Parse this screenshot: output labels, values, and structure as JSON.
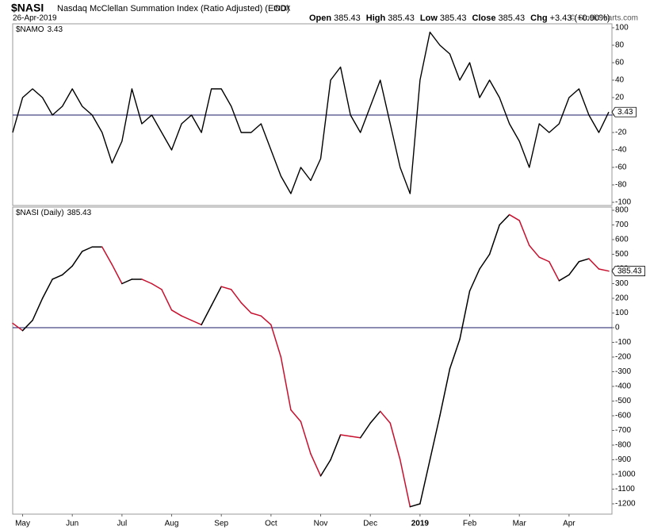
{
  "header": {
    "symbol": "$NASI",
    "name": "Nasdaq McClellan Summation Index (Ratio Adjusted) (EOD)",
    "exchange": "INDX",
    "date": "26-Apr-2019",
    "quote": [
      {
        "label": "Open",
        "value": "385.43"
      },
      {
        "label": "High",
        "value": "385.43"
      },
      {
        "label": "Low",
        "value": "385.43"
      },
      {
        "label": "Close",
        "value": "385.43"
      },
      {
        "label": "Chg",
        "value": "+3.43 (+0.90%)"
      }
    ],
    "credit": "© StockCharts.com"
  },
  "chart_data": [
    {
      "type": "line",
      "ylim": [
        -100,
        100
      ],
      "yticks": [
        100,
        80,
        60,
        40,
        20,
        0,
        -20,
        -40,
        -60,
        -80,
        -100
      ],
      "hline": {
        "value": 0,
        "color": "#1a1a66"
      },
      "series": [
        {
          "name": "$NAMO",
          "color": "#000000",
          "values": [
            -20,
            20,
            30,
            20,
            0,
            10,
            30,
            10,
            0,
            -20,
            -55,
            -30,
            30,
            -10,
            0,
            -20,
            -40,
            -10,
            0,
            -20,
            30,
            30,
            10,
            -20,
            -20,
            -10,
            -40,
            -70,
            -90,
            -60,
            -75,
            -50,
            40,
            55,
            0,
            -20,
            10,
            40,
            -10,
            -60,
            -90,
            40,
            95,
            80,
            70,
            40,
            60,
            20,
            40,
            20,
            -10,
            -30,
            -60,
            -10,
            -20,
            -10,
            20,
            30,
            0,
            -20,
            3.43
          ]
        }
      ]
    },
    {
      "type": "line",
      "ylim": [
        -1200,
        800
      ],
      "yticks": [
        800,
        700,
        600,
        500,
        400,
        300,
        200,
        100,
        0,
        -100,
        -200,
        -300,
        -400,
        -500,
        -600,
        -700,
        -800,
        -900,
        -1000,
        -1100,
        -1200
      ],
      "hline": {
        "value": 0,
        "color": "#1a1a66"
      },
      "categories": [
        null,
        "May",
        null,
        null,
        null,
        null,
        "Jun",
        null,
        null,
        null,
        null,
        "Jul",
        null,
        null,
        null,
        null,
        "Aug",
        null,
        null,
        null,
        null,
        "Sep",
        null,
        null,
        null,
        null,
        "Oct",
        null,
        null,
        null,
        null,
        "Nov",
        null,
        null,
        null,
        null,
        "Dec",
        null,
        null,
        null,
        null,
        "2019",
        null,
        null,
        null,
        null,
        "Feb",
        null,
        null,
        null,
        null,
        "Mar",
        null,
        null,
        null,
        null,
        "Apr",
        null,
        null,
        null,
        null
      ],
      "bold_categories": [
        "2019"
      ],
      "series": [
        {
          "name": "$NASI (Daily)",
          "color": "#000000",
          "down_color": "#c8102e",
          "values": [
            30,
            -20,
            50,
            200,
            330,
            360,
            420,
            520,
            550,
            550,
            430,
            300,
            330,
            330,
            300,
            260,
            120,
            80,
            50,
            20,
            150,
            280,
            260,
            170,
            100,
            80,
            20,
            -200,
            -560,
            -640,
            -860,
            -1010,
            -900,
            -730,
            -740,
            -750,
            -650,
            -570,
            -650,
            -900,
            -1220,
            -1200,
            -900,
            -600,
            -280,
            -80,
            250,
            400,
            500,
            700,
            770,
            730,
            560,
            480,
            450,
            320,
            360,
            450,
            470,
            400,
            385.43
          ]
        }
      ]
    }
  ]
}
